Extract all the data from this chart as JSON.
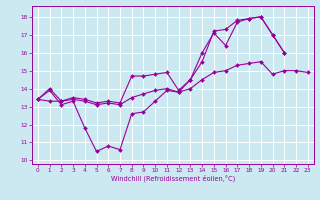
{
  "xlabel": "Windchill (Refroidissement éolien,°C)",
  "ylabel": "",
  "background_color": "#cce8f0",
  "grid_color": "#ffffff",
  "line_color": "#990099",
  "xlim": [
    -0.5,
    23.5
  ],
  "ylim": [
    9.8,
    18.6
  ],
  "yticks": [
    10,
    11,
    12,
    13,
    14,
    15,
    16,
    17,
    18
  ],
  "xticks": [
    0,
    1,
    2,
    3,
    4,
    5,
    6,
    7,
    8,
    9,
    10,
    11,
    12,
    13,
    14,
    15,
    16,
    17,
    18,
    19,
    20,
    21,
    22,
    23
  ],
  "series": [
    {
      "x": [
        0,
        1,
        2,
        3,
        4,
        5,
        6,
        7,
        8,
        9,
        10,
        11,
        12,
        13,
        14,
        15,
        16,
        17,
        18,
        19,
        20,
        21
      ],
      "y": [
        13.4,
        13.9,
        13.1,
        13.3,
        11.8,
        10.5,
        10.8,
        10.6,
        12.6,
        12.7,
        13.3,
        13.9,
        13.8,
        14.5,
        16.0,
        17.1,
        16.4,
        17.7,
        17.9,
        18.0,
        17.0,
        16.0
      ]
    },
    {
      "x": [
        0,
        1,
        2,
        3,
        4,
        5,
        6,
        7,
        8,
        9,
        10,
        11,
        12,
        13,
        14,
        15,
        16,
        17,
        18,
        19,
        20,
        21
      ],
      "y": [
        13.4,
        14.0,
        13.3,
        13.5,
        13.4,
        13.2,
        13.3,
        13.2,
        14.7,
        14.7,
        14.8,
        14.9,
        13.9,
        14.5,
        15.5,
        17.2,
        17.3,
        17.8,
        17.9,
        18.0,
        17.0,
        16.0
      ]
    },
    {
      "x": [
        0,
        1,
        2,
        3,
        4,
        5,
        6,
        7,
        8,
        9,
        10,
        11,
        12,
        13,
        14,
        15,
        16,
        17,
        18,
        19,
        20,
        21,
        22,
        23
      ],
      "y": [
        13.4,
        13.3,
        13.3,
        13.4,
        13.3,
        13.1,
        13.2,
        13.1,
        13.5,
        13.7,
        13.9,
        14.0,
        13.8,
        14.0,
        14.5,
        14.9,
        15.0,
        15.3,
        15.4,
        15.5,
        14.8,
        15.0,
        15.0,
        14.9
      ]
    }
  ]
}
